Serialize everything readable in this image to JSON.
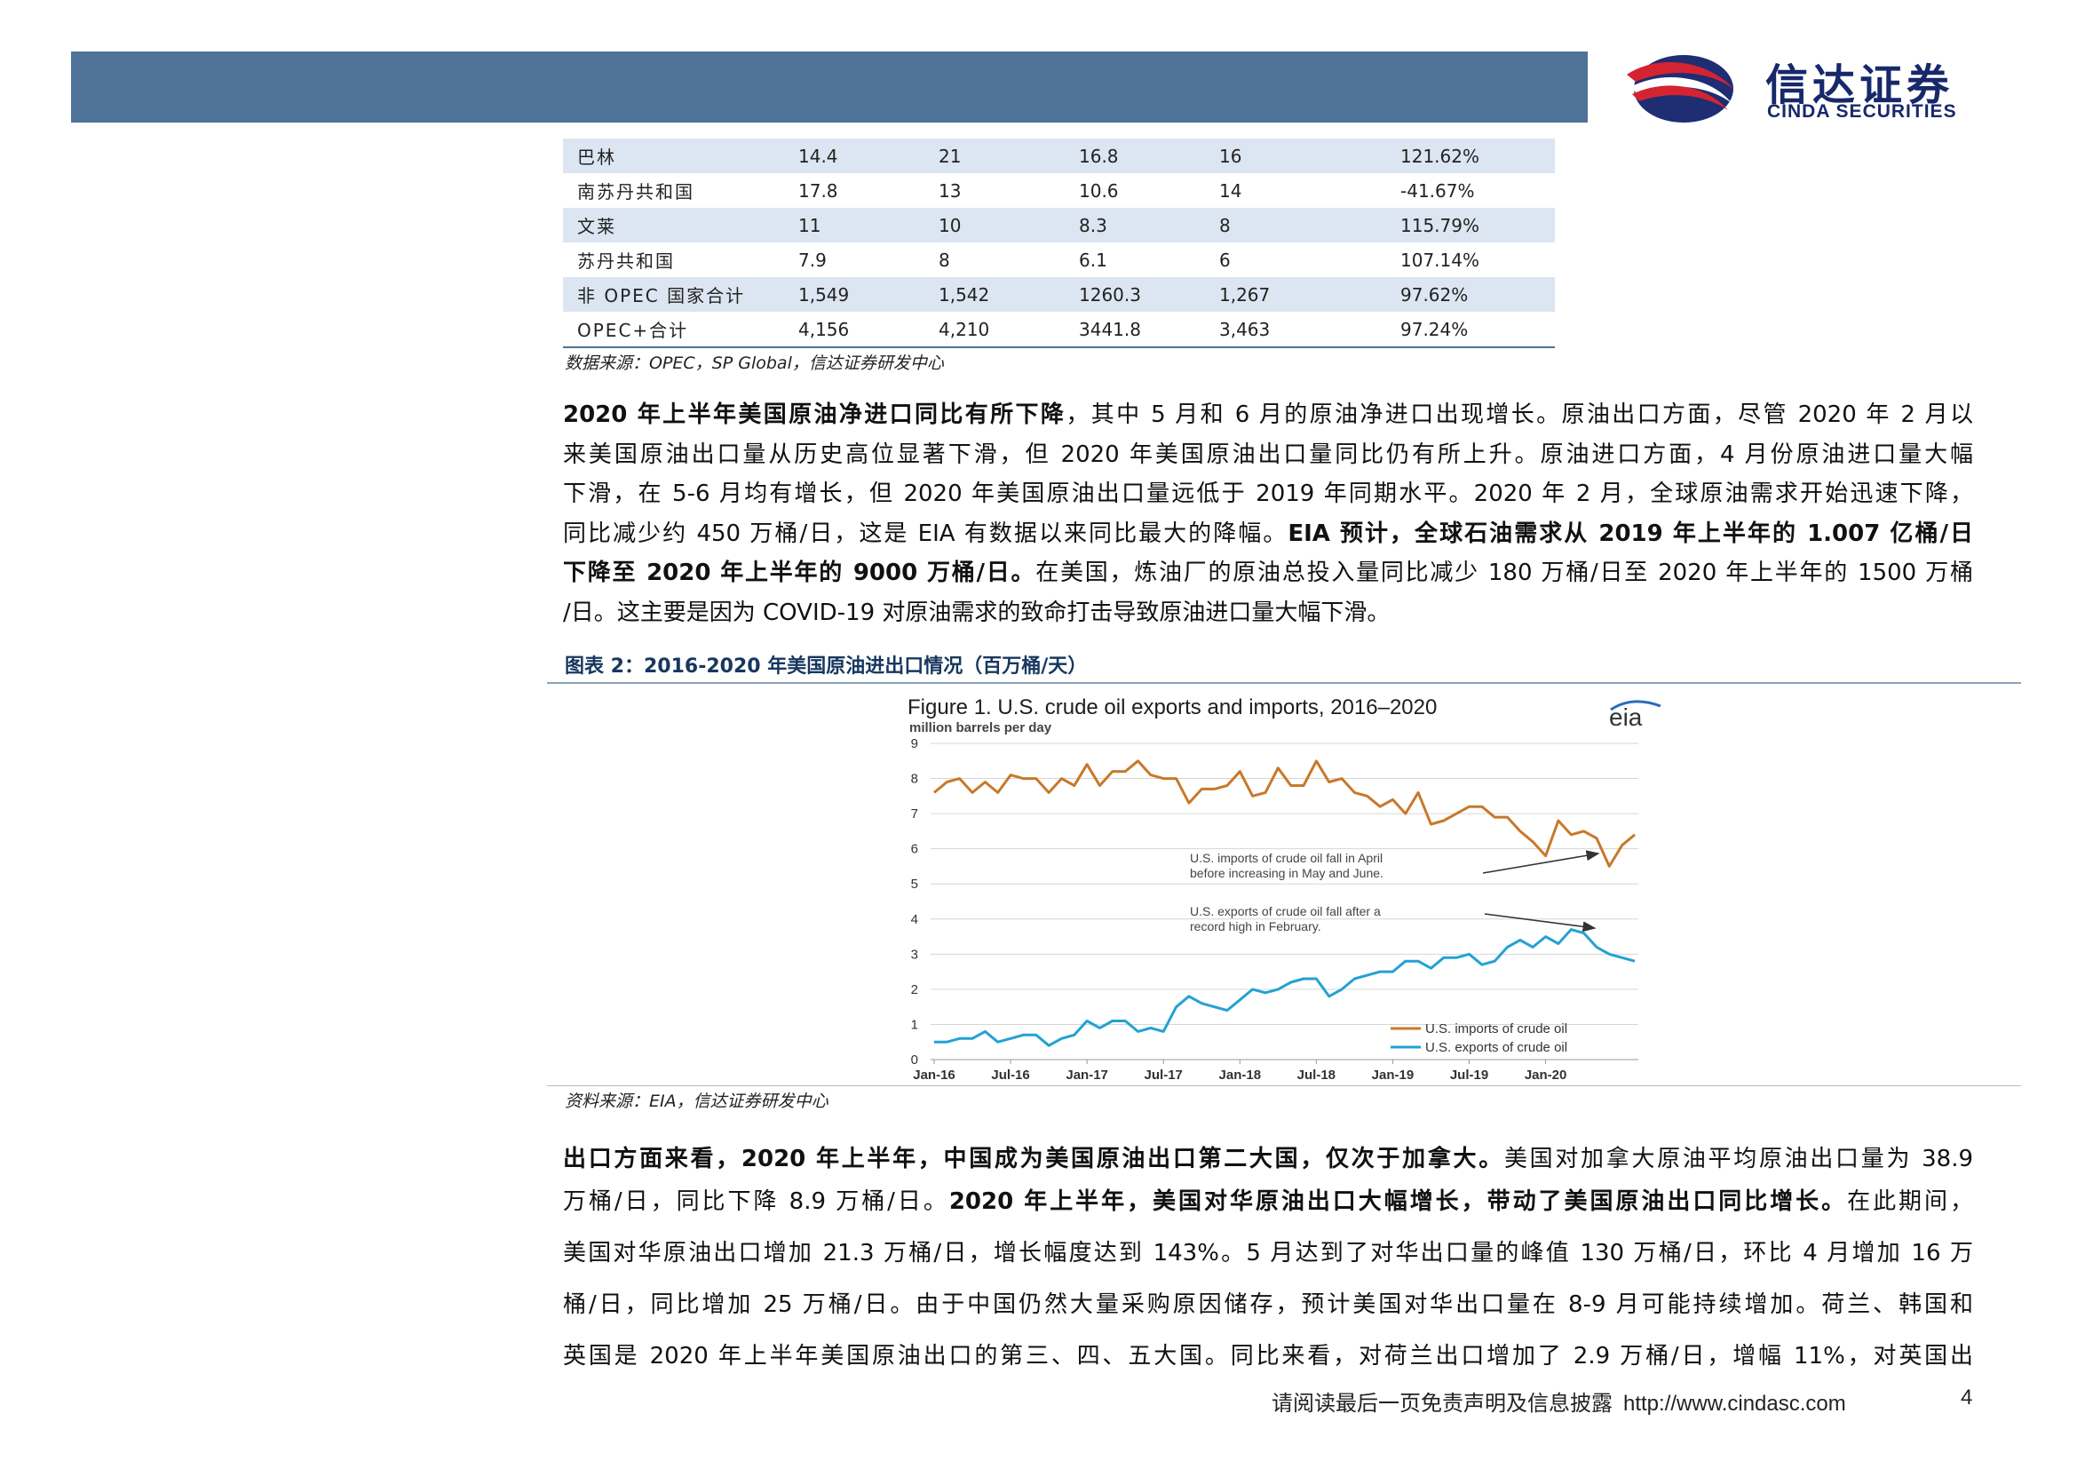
{
  "header": {
    "logo_cn": "信达证券",
    "logo_en": "CINDA SECURITIES"
  },
  "table": {
    "rows": [
      [
        "巴林",
        "14.4",
        "21",
        "16.8",
        "16",
        "121.62%"
      ],
      [
        "南苏丹共和国",
        "17.8",
        "13",
        "10.6",
        "14",
        "-41.67%"
      ],
      [
        "文莱",
        "11",
        "10",
        "8.3",
        "8",
        "115.79%"
      ],
      [
        "苏丹共和国",
        "7.9",
        "8",
        "6.1",
        "6",
        "107.14%"
      ],
      [
        "非 OPEC 国家合计",
        "1,549",
        "1,542",
        "1260.3",
        "1,267",
        "97.62%"
      ],
      [
        "OPEC+合计",
        "4,156",
        "4,210",
        "3441.8",
        "3,463",
        "97.24%"
      ]
    ],
    "source": "数据来源：OPEC，SP Global，信达证券研发中心"
  },
  "para1": {
    "l1_bold": "2020 年上半年美国原油净进口同比有所下降",
    "l1_rest": "，其中 5 月和 6 月的原油净进口出现增长。原油出口方面，尽管 2020 年 2 月以",
    "l2": "来美国原油出口量从历史高位显著下滑，但 2020 年美国原油出口量同比仍有所上升。原油进口方面，4 月份原油进口量大幅",
    "l3": "下滑，在 5-6 月均有增长，但 2020 年美国原油出口量远低于 2019 年同期水平。2020 年 2 月，全球原油需求开始迅速下降，",
    "l4_rest": "同比减少约 450 万桶/日，这是 EIA 有数据以来同比最大的降幅。",
    "l4_bold": "EIA 预计，全球石油需求从 2019 年上半年的 1.007 亿桶/日",
    "l5_bold": "下降至 2020 年上半年的 9000 万桶/日。",
    "l5_rest": "在美国，炼油厂的原油总投入量同比减少 180 万桶/日至 2020 年上半年的 1500 万桶",
    "l6": "/日。这主要是因为 COVID-19 对原油需求的致命打击导致原油进口量大幅下滑。"
  },
  "figure": {
    "title": "图表 2：2016-2020 年美国原油进出口情况（百万桶/天）",
    "source": "资料来源：EIA，信达证券研发中心"
  },
  "chart_data": {
    "type": "line",
    "title": "Figure 1. U.S. crude oil exports and imports, 2016–2020",
    "ylabel": "million barrels per day",
    "logo": "eia",
    "ylim": [
      0,
      9
    ],
    "yticks": [
      "0",
      "1",
      "2",
      "3",
      "4",
      "5",
      "6",
      "7",
      "8",
      "9"
    ],
    "xtick_labels": [
      "Jan-16",
      "Jul-16",
      "Jan-17",
      "Jul-17",
      "Jan-18",
      "Jul-18",
      "Jan-19",
      "Jul-19",
      "Jan-20"
    ],
    "xtick_index": [
      0,
      6,
      12,
      18,
      24,
      30,
      36,
      42,
      48
    ],
    "series": [
      {
        "name": "U.S. imports of crude oil",
        "color": "#c8782a",
        "values": [
          7.6,
          7.9,
          8.0,
          7.6,
          7.9,
          7.6,
          8.1,
          8.0,
          8.0,
          7.6,
          8.0,
          7.8,
          8.4,
          7.8,
          8.2,
          8.2,
          8.5,
          8.1,
          8.0,
          8.0,
          7.3,
          7.7,
          7.7,
          7.8,
          8.2,
          7.5,
          7.6,
          8.3,
          7.8,
          7.8,
          8.5,
          7.9,
          8.0,
          7.6,
          7.5,
          7.2,
          7.4,
          7.0,
          7.6,
          6.7,
          6.8,
          7.0,
          7.2,
          7.2,
          6.9,
          6.9,
          6.5,
          6.2,
          5.8,
          6.8,
          6.4,
          6.5,
          6.3,
          5.5,
          6.1,
          6.4
        ]
      },
      {
        "name": "U.S. exports of crude oil",
        "color": "#22a2d4",
        "values": [
          0.5,
          0.5,
          0.6,
          0.6,
          0.8,
          0.5,
          0.6,
          0.7,
          0.7,
          0.4,
          0.6,
          0.7,
          1.1,
          0.9,
          1.1,
          1.1,
          0.8,
          0.9,
          0.8,
          1.5,
          1.8,
          1.6,
          1.5,
          1.4,
          1.7,
          2.0,
          1.9,
          2.0,
          2.2,
          2.3,
          2.3,
          1.8,
          2.0,
          2.3,
          2.4,
          2.5,
          2.5,
          2.8,
          2.8,
          2.6,
          2.9,
          2.9,
          3.0,
          2.7,
          2.8,
          3.2,
          3.4,
          3.2,
          3.5,
          3.3,
          3.7,
          3.6,
          3.2,
          3.0,
          2.9,
          2.8
        ]
      }
    ],
    "annotations": [
      "U.S. imports of crude oil fall in April",
      "before increasing in May and June.",
      "U.S. exports of crude oil fall after a",
      "record high in February."
    ]
  },
  "para2": {
    "l1_bold1": "出口方面来看，2020 年上半年，中国成为美国原油出口第二大国，仅次于加拿大。",
    "l1_rest": "美国对加拿大原油平均原油出口量为 38.9",
    "l2_a": "万桶/日，同比下降 8.9 万桶/日。",
    "l2_bold": "2020 年上半年，美国对华原油出口大幅增长，带动了美国原油出口同比增长。",
    "l2_b": "在此期间，",
    "l3": "美国对华原油出口增加 21.3 万桶/日，增长幅度达到 143%。5 月达到了对华出口量的峰值 130 万桶/日，环比 4 月增加 16 万",
    "l4": "桶/日，同比增加 25 万桶/日。由于中国仍然大量采购原因储存，预计美国对华出口量在 8-9 月可能持续增加。荷兰、韩国和",
    "l5": "英国是 2020 年上半年美国原油出口的第三、四、五大国。同比来看，对荷兰出口增加了 2.9 万桶/日，增幅 11%，对英国出"
  },
  "footer": {
    "disclaimer": "请阅读最后一页免责声明及信息披露",
    "url": "http://www.cindasc.com",
    "page": "4"
  }
}
